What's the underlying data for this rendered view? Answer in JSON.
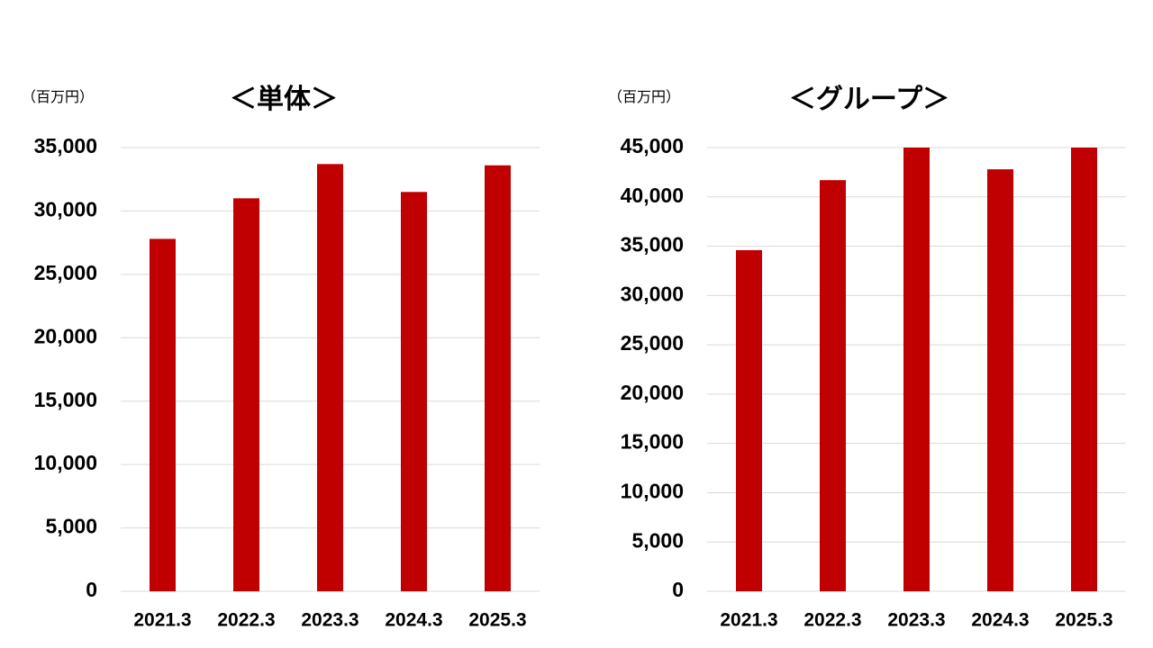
{
  "chart_data": [
    {
      "type": "bar",
      "title": "＜単体＞",
      "unit_label": "（百万円）",
      "categories": [
        "2021.3",
        "2022.3",
        "2023.3",
        "2024.3",
        "2025.3"
      ],
      "values": [
        27800,
        31000,
        33700,
        31500,
        33600
      ],
      "color": "#c00000",
      "ylim": [
        0,
        35000
      ],
      "yticks": [
        0,
        {
          "value": 5000,
          "label": "5,000"
        },
        {
          "value": 10000,
          "label": "10,000"
        },
        {
          "value": 15000,
          "label": "15,000"
        },
        {
          "value": 20000,
          "label": "20,000"
        },
        {
          "value": 25000,
          "label": "25,000"
        },
        {
          "value": 30000,
          "label": "30,000"
        },
        {
          "value": 35000,
          "label": "35,000"
        }
      ],
      "grid": true
    },
    {
      "type": "bar",
      "title": "＜グループ＞",
      "unit_label": "（百万円）",
      "categories": [
        "2021.3",
        "2022.3",
        "2023.3",
        "2024.3",
        "2025.3"
      ],
      "values": [
        34600,
        41700,
        45000,
        42800,
        45000
      ],
      "color": "#c00000",
      "ylim": [
        0,
        45000
      ],
      "yticks": [
        0,
        {
          "value": 5000,
          "label": "5,000"
        },
        {
          "value": 10000,
          "label": "10,000"
        },
        {
          "value": 15000,
          "label": "15,000"
        },
        {
          "value": 20000,
          "label": "20,000"
        },
        {
          "value": 25000,
          "label": "25,000"
        },
        {
          "value": 30000,
          "label": "30,000"
        },
        {
          "value": 35000,
          "label": "35,000"
        },
        {
          "value": 40000,
          "label": "40,000"
        },
        {
          "value": 45000,
          "label": "45,000"
        }
      ],
      "grid": true
    }
  ]
}
